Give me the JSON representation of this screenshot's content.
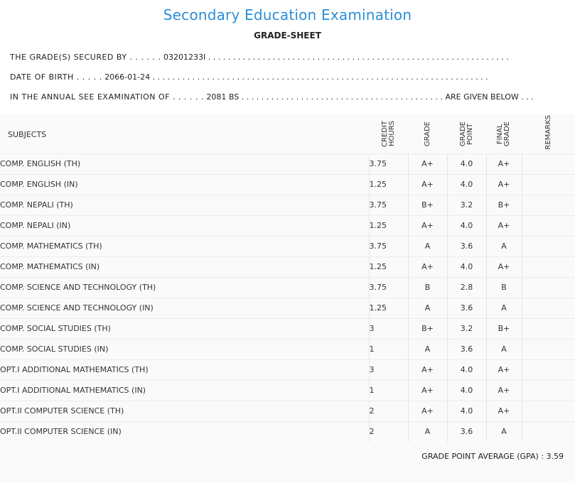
{
  "header": {
    "title": "Secondary Education Examination",
    "subtitle": "GRADE-SHEET"
  },
  "student": {
    "secured_by_label": "THE GRADE(S) SECURED BY . . . . . .",
    "symbol_no": "03201233I",
    "secured_by_trail": ". . . . . . . . . . . . . . . . . . . . . . . . . . . . . . . . . . . . . . . . . . . . . . . . . . . . . . . . . . . . .",
    "dob_label": "DATE OF BIRTH . . . . .",
    "dob": "2066-01-24",
    "dob_trail": ". . . . . . . . . . . . . . . . . . . . . . . . . . . . . . . . . . . . . . . . . . . . . . . . . . . . . . . . . . . . . . . . . . . .",
    "exam_label": "IN THE ANNUAL SEE EXAMINATION OF . . . . . .",
    "exam_year": "2081 BS",
    "exam_trail": ". . . . . . . . . . . . . . . . . . . . . . . . . . . . . . . . . . . . . . . . . ARE GIVEN BELOW . . ."
  },
  "table": {
    "headers": {
      "subjects": "SUBJECTS",
      "credit_hours": "CREDIT\nHOURS",
      "grade": "GRADE",
      "grade_point": "GRADE\nPOINT",
      "final_grade": "FINAL\nGRADE",
      "remarks": "REMARKS"
    },
    "rows": [
      {
        "subject": "COMP. ENGLISH (TH)",
        "credit": "3.75",
        "grade": "A+",
        "point": "4.0",
        "final": "A+",
        "remarks": ""
      },
      {
        "subject": "COMP. ENGLISH (IN)",
        "credit": "1.25",
        "grade": "A+",
        "point": "4.0",
        "final": "A+",
        "remarks": ""
      },
      {
        "subject": "COMP. NEPALI (TH)",
        "credit": "3.75",
        "grade": "B+",
        "point": "3.2",
        "final": "B+",
        "remarks": ""
      },
      {
        "subject": "COMP. NEPALI (IN)",
        "credit": "1.25",
        "grade": "A+",
        "point": "4.0",
        "final": "A+",
        "remarks": ""
      },
      {
        "subject": "COMP. MATHEMATICS (TH)",
        "credit": "3.75",
        "grade": "A",
        "point": "3.6",
        "final": "A",
        "remarks": ""
      },
      {
        "subject": "COMP. MATHEMATICS (IN)",
        "credit": "1.25",
        "grade": "A+",
        "point": "4.0",
        "final": "A+",
        "remarks": ""
      },
      {
        "subject": "COMP. SCIENCE AND TECHNOLOGY (TH)",
        "credit": "3.75",
        "grade": "B",
        "point": "2.8",
        "final": "B",
        "remarks": ""
      },
      {
        "subject": "COMP. SCIENCE AND TECHNOLOGY (IN)",
        "credit": "1.25",
        "grade": "A",
        "point": "3.6",
        "final": "A",
        "remarks": ""
      },
      {
        "subject": "COMP. SOCIAL STUDIES (TH)",
        "credit": "3",
        "grade": "B+",
        "point": "3.2",
        "final": "B+",
        "remarks": ""
      },
      {
        "subject": "COMP. SOCIAL STUDIES (IN)",
        "credit": "1",
        "grade": "A",
        "point": "3.6",
        "final": "A",
        "remarks": ""
      },
      {
        "subject": "OPT.I ADDITIONAL MATHEMATICS (TH)",
        "credit": "3",
        "grade": "A+",
        "point": "4.0",
        "final": "A+",
        "remarks": ""
      },
      {
        "subject": "OPT.I ADDITIONAL MATHEMATICS (IN)",
        "credit": "1",
        "grade": "A+",
        "point": "4.0",
        "final": "A+",
        "remarks": ""
      },
      {
        "subject": "OPT.II COMPUTER SCIENCE (TH)",
        "credit": "2",
        "grade": "A+",
        "point": "4.0",
        "final": "A+",
        "remarks": ""
      },
      {
        "subject": "OPT.II COMPUTER SCIENCE (IN)",
        "credit": "2",
        "grade": "A",
        "point": "3.6",
        "final": "A",
        "remarks": ""
      }
    ]
  },
  "summary": {
    "gpa_label": "GRADE POINT AVERAGE (GPA) :",
    "gpa_value": "3.59"
  }
}
